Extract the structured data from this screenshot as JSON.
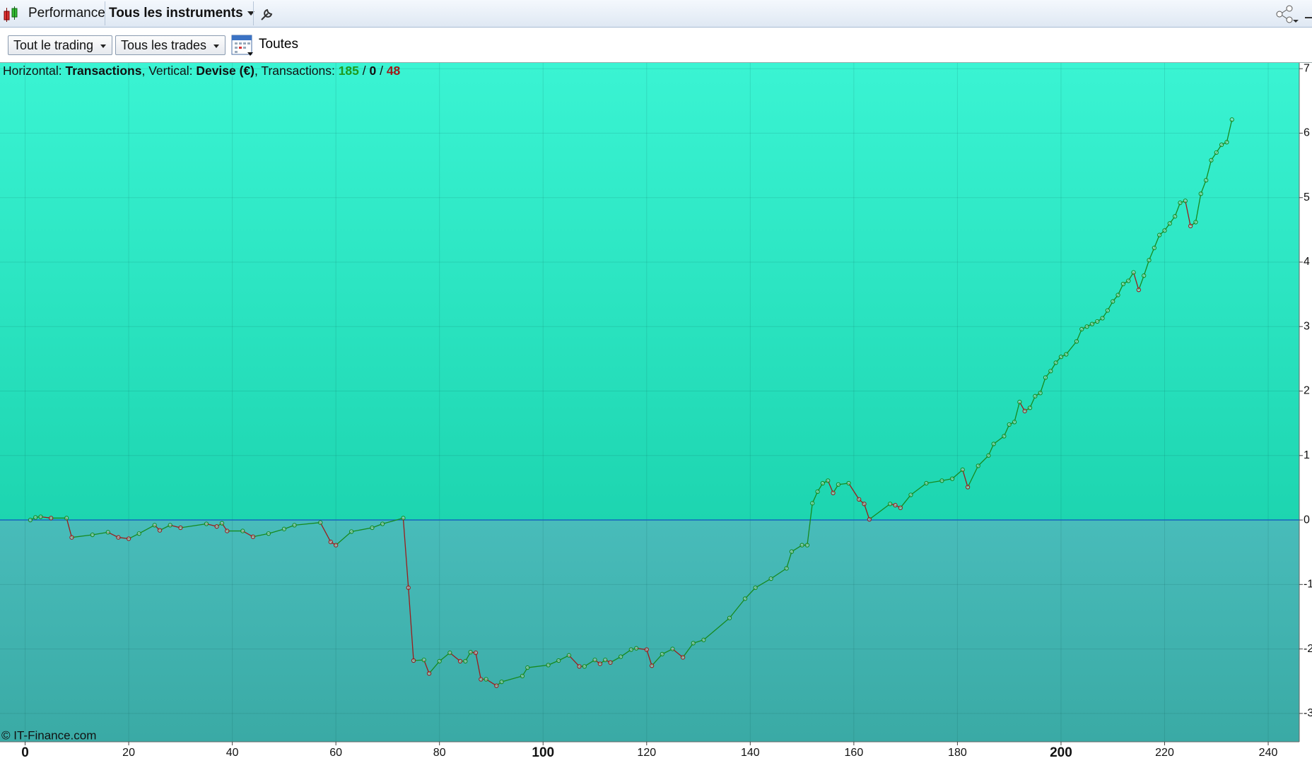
{
  "toolbar": {
    "title": "Performance",
    "instrument": "Tous les instruments"
  },
  "filters": {
    "scope": "Tout le trading",
    "trades": "Tous les trades",
    "period": "Toutes"
  },
  "chart_data": {
    "type": "line",
    "subtitle_parts": [
      {
        "text": "Horizontal: "
      },
      {
        "text": "Transactions",
        "bold": true
      },
      {
        "text": ", Vertical: "
      },
      {
        "text": "Devise (€)",
        "bold": true
      },
      {
        "text": ", Transactions: "
      },
      {
        "text": "185",
        "bold": true,
        "color": "#1e9b1e"
      },
      {
        "text": " / "
      },
      {
        "text": "0",
        "bold": true
      },
      {
        "text": " / "
      },
      {
        "text": "48",
        "bold": true,
        "color": "#a01818"
      }
    ],
    "copyright": "© IT-Finance.com",
    "x": [
      1,
      2,
      3,
      5,
      8,
      9,
      13,
      16,
      18,
      20,
      22,
      25,
      26,
      28,
      30,
      35,
      37,
      38,
      39,
      42,
      44,
      47,
      50,
      52,
      57,
      59,
      60,
      63,
      67,
      69,
      73,
      74,
      75,
      77,
      78,
      80,
      82,
      84,
      85,
      86,
      87,
      88,
      89,
      91,
      92,
      96,
      97,
      101,
      103,
      105,
      107,
      108,
      110,
      111,
      112,
      113,
      115,
      117,
      118,
      120,
      121,
      123,
      125,
      127,
      129,
      131,
      136,
      139,
      141,
      144,
      147,
      148,
      150,
      151,
      152,
      153,
      154,
      155,
      156,
      157,
      159,
      161,
      162,
      163,
      167,
      168,
      169,
      171,
      174,
      177,
      179,
      181,
      182,
      184,
      186,
      187,
      189,
      190,
      191,
      192,
      193,
      194,
      195,
      196,
      197,
      198,
      199,
      200,
      201,
      203,
      204,
      205,
      206,
      207,
      208,
      209,
      210,
      211,
      212,
      213,
      214,
      215,
      216,
      217,
      218,
      219,
      220,
      221,
      222,
      223,
      224,
      225,
      226,
      227,
      228,
      229,
      230,
      231,
      232,
      233
    ],
    "series": [
      {
        "up_color": "#178a1f",
        "down_color": "#9b1c1c",
        "values": [
          0,
          0.04,
          0.05,
          0.03,
          0.03,
          -0.27,
          -0.23,
          -0.19,
          -0.27,
          -0.29,
          -0.21,
          -0.08,
          -0.16,
          -0.08,
          -0.12,
          -0.06,
          -0.1,
          -0.05,
          -0.17,
          -0.17,
          -0.26,
          -0.21,
          -0.14,
          -0.08,
          -0.04,
          -0.34,
          -0.39,
          -0.18,
          -0.12,
          -0.06,
          0.03,
          -1.05,
          -2.18,
          -2.17,
          -2.38,
          -2.19,
          -2.06,
          -2.19,
          -2.19,
          -2.05,
          -2.06,
          -2.47,
          -2.47,
          -2.57,
          -2.51,
          -2.42,
          -2.29,
          -2.25,
          -2.18,
          -2.1,
          -2.27,
          -2.27,
          -2.17,
          -2.23,
          -2.17,
          -2.21,
          -2.12,
          -2.01,
          -1.99,
          -2.01,
          -2.26,
          -2.08,
          -2.0,
          -2.13,
          -1.91,
          -1.86,
          -1.52,
          -1.22,
          -1.05,
          -0.91,
          -0.75,
          -0.49,
          -0.39,
          -0.39,
          0.26,
          0.44,
          0.57,
          0.61,
          0.42,
          0.55,
          0.57,
          0.32,
          0.25,
          0.01,
          0.25,
          0.23,
          0.19,
          0.39,
          0.57,
          0.61,
          0.64,
          0.78,
          0.51,
          0.84,
          1.0,
          1.18,
          1.3,
          1.48,
          1.52,
          1.83,
          1.69,
          1.74,
          1.92,
          1.97,
          2.21,
          2.31,
          2.44,
          2.53,
          2.57,
          2.77,
          2.96,
          3.0,
          3.04,
          3.08,
          3.13,
          3.25,
          3.39,
          3.49,
          3.66,
          3.71,
          3.84,
          3.57,
          3.79,
          4.03,
          4.22,
          4.42,
          4.49,
          4.6,
          4.71,
          4.92,
          4.95,
          4.56,
          4.62,
          5.06,
          5.27,
          5.58,
          5.7,
          5.82,
          5.86,
          6.21
        ]
      }
    ],
    "xlim": [
      -4.85,
      246
    ],
    "ylim": [
      -3.44,
      7.09
    ],
    "xticks": [
      0,
      20,
      40,
      60,
      80,
      100,
      120,
      140,
      160,
      180,
      200,
      220,
      240
    ],
    "yticks": [
      7,
      6,
      5,
      4,
      3,
      2,
      1,
      0,
      -1,
      -2,
      -3
    ],
    "zero_line_color": "#1565c0",
    "grid": true
  }
}
